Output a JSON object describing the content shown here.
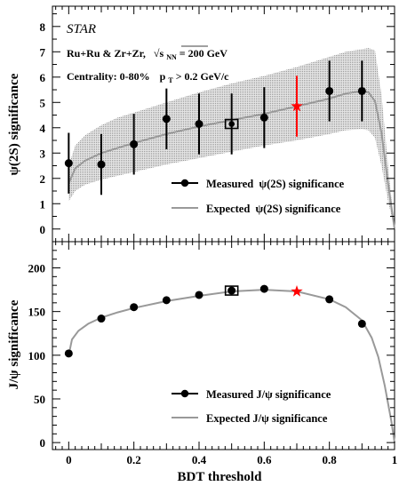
{
  "figure": {
    "experiment": "STAR",
    "system": "Ru+Ru & Zr+Zr,",
    "energy": "√s",
    "energy_sub": "NN",
    "energy_value": " = 200 GeV",
    "centrality": "Centrality: 0-80%",
    "pt_cut_p": "p",
    "pt_cut_sub": "T",
    "pt_cut_value": " > 0.2 GeV/c",
    "x_title": "BDT threshold"
  },
  "chart_data": [
    {
      "type": "line",
      "panel": "top",
      "ylabel": "ψ(2S) significance",
      "xlim": [
        -0.05,
        1.0
      ],
      "ylim": [
        -0.5,
        8.8
      ],
      "y_ticks": [
        0,
        1,
        2,
        3,
        4,
        5,
        6,
        7,
        8
      ],
      "x_ticks": [
        0,
        0.2,
        0.4,
        0.6,
        0.8,
        1
      ],
      "series": [
        {
          "name": "Measured  ψ(2S) significance",
          "kind": "points_with_errors",
          "x": [
            0.0,
            0.1,
            0.2,
            0.3,
            0.4,
            0.5,
            0.6,
            0.7,
            0.8,
            0.9
          ],
          "y": [
            2.6,
            2.55,
            3.35,
            4.35,
            4.15,
            4.15,
            4.4,
            4.85,
            5.45,
            5.45
          ],
          "yerr": [
            1.2,
            1.2,
            1.2,
            1.2,
            1.2,
            1.2,
            1.2,
            1.2,
            1.2,
            1.2
          ]
        },
        {
          "name": "Expected  ψ(2S) significance",
          "kind": "curve_with_band",
          "x": [
            0.0,
            0.02,
            0.05,
            0.1,
            0.15,
            0.2,
            0.3,
            0.4,
            0.5,
            0.6,
            0.7,
            0.8,
            0.85,
            0.9,
            0.92,
            0.94,
            0.96,
            0.98,
            1.0
          ],
          "y": [
            1.8,
            2.4,
            2.7,
            3.0,
            3.2,
            3.4,
            3.75,
            4.05,
            4.3,
            4.55,
            4.85,
            5.15,
            5.35,
            5.45,
            5.4,
            5.05,
            3.8,
            1.8,
            0.0
          ],
          "band_upper": [
            2.5,
            3.3,
            3.7,
            4.1,
            4.4,
            4.6,
            5.0,
            5.4,
            5.75,
            6.05,
            6.4,
            6.8,
            7.0,
            7.1,
            7.15,
            7.05,
            5.3,
            2.5,
            0.0
          ],
          "band_lower": [
            1.1,
            1.5,
            1.75,
            1.95,
            2.1,
            2.25,
            2.55,
            2.8,
            3.05,
            3.3,
            3.5,
            3.75,
            3.9,
            3.95,
            3.9,
            3.6,
            2.5,
            1.1,
            0.0
          ]
        }
      ],
      "markers": [
        {
          "kind": "open-square",
          "x": 0.5,
          "y": 4.15
        },
        {
          "kind": "red-star",
          "x": 0.7,
          "y": 4.85,
          "yerr": 1.2
        }
      ],
      "legend_position": "bottom-right"
    },
    {
      "type": "line",
      "panel": "bottom",
      "ylabel": "J/ψ significance",
      "xlim": [
        -0.05,
        1.0
      ],
      "ylim": [
        -8,
        230
      ],
      "y_ticks": [
        0,
        50,
        100,
        150,
        200
      ],
      "x_ticks": [
        0,
        0.2,
        0.4,
        0.6,
        0.8,
        1
      ],
      "series": [
        {
          "name": "Measured J/ψ significance",
          "kind": "points",
          "x": [
            0.0,
            0.1,
            0.2,
            0.3,
            0.4,
            0.5,
            0.6,
            0.8,
            0.9
          ],
          "y": [
            102,
            142,
            155,
            163,
            169,
            174,
            176,
            164,
            136
          ]
        },
        {
          "name": "Expected J/ψ significance",
          "kind": "curve",
          "x": [
            0.0,
            0.01,
            0.03,
            0.06,
            0.1,
            0.15,
            0.2,
            0.3,
            0.4,
            0.5,
            0.6,
            0.7,
            0.8,
            0.85,
            0.9,
            0.93,
            0.95,
            0.97,
            0.99,
            1.0
          ],
          "y": [
            100,
            118,
            128,
            136,
            143,
            149,
            154,
            162,
            168,
            173,
            175,
            173,
            164,
            155,
            140,
            120,
            98,
            65,
            25,
            0
          ]
        }
      ],
      "markers": [
        {
          "kind": "open-square",
          "x": 0.5,
          "y": 174
        },
        {
          "kind": "red-star",
          "x": 0.7,
          "y": 173
        }
      ],
      "legend_position": "bottom-right"
    }
  ]
}
